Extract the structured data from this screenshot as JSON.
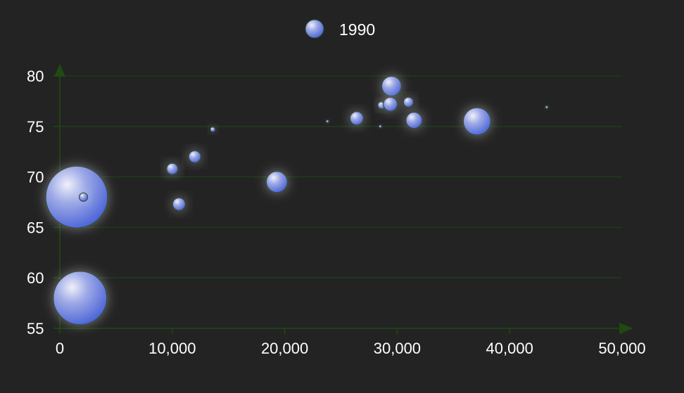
{
  "chart_data": {
    "type": "scatter",
    "title": "",
    "xlabel": "",
    "ylabel": "",
    "xlim": [
      0,
      50000
    ],
    "ylim": [
      55,
      80
    ],
    "x_ticks": [
      0,
      10000,
      20000,
      30000,
      40000,
      50000
    ],
    "x_tick_labels": [
      "0",
      "10,000",
      "20,000",
      "30,000",
      "40,000",
      "50,000"
    ],
    "y_ticks": [
      55,
      60,
      65,
      70,
      75,
      80
    ],
    "y_tick_labels": [
      "55",
      "60",
      "65",
      "70",
      "75",
      "80"
    ],
    "grid": "horizontal",
    "legend_position": "top-center",
    "series": [
      {
        "name": "1990",
        "color": "#4a63d6",
        "highlight": "#ecedf8",
        "border": "#2f4a3a",
        "points": [
          {
            "x": 23800,
            "y": 75.5,
            "size": 4
          },
          {
            "x": 13600,
            "y": 74.7,
            "size": 7
          },
          {
            "x": 43300,
            "y": 76.9,
            "size": 4
          },
          {
            "x": 28500,
            "y": 75.0,
            "size": 4
          },
          {
            "x": 26400,
            "y": 75.8,
            "size": 19
          },
          {
            "x": 31500,
            "y": 75.6,
            "size": 23
          },
          {
            "x": 37100,
            "y": 75.5,
            "size": 39
          },
          {
            "x": 29500,
            "y": 79.0,
            "size": 28
          },
          {
            "x": 28600,
            "y": 77.1,
            "size": 10
          },
          {
            "x": 29400,
            "y": 77.2,
            "size": 20
          },
          {
            "x": 31000,
            "y": 77.4,
            "size": 14
          },
          {
            "x": 10000,
            "y": 70.8,
            "size": 16
          },
          {
            "x": 12000,
            "y": 72.0,
            "size": 17
          },
          {
            "x": 10600,
            "y": 67.3,
            "size": 18
          },
          {
            "x": 19300,
            "y": 69.5,
            "size": 30
          },
          {
            "x": 1500,
            "y": 68.0,
            "size": 88
          },
          {
            "x": 2100,
            "y": 68.0,
            "size": 12
          },
          {
            "x": 1800,
            "y": 58.0,
            "size": 76
          }
        ]
      }
    ]
  }
}
